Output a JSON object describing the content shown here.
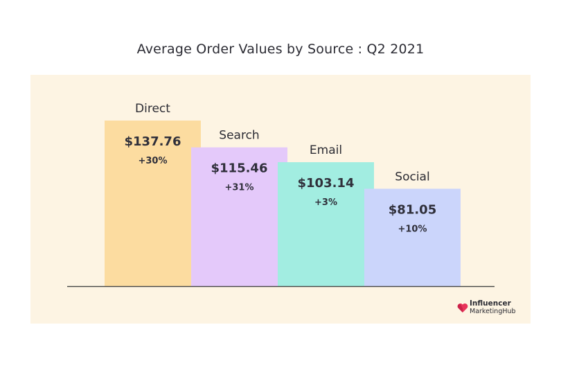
{
  "chart_data": {
    "type": "bar",
    "title": "Average Order Values by Source : Q2 2021",
    "categories": [
      "Direct",
      "Search",
      "Email",
      "Social"
    ],
    "values": [
      137.76,
      115.46,
      103.14,
      81.05
    ],
    "value_labels": [
      "$137.76",
      "$115.46",
      "$103.14",
      "$81.05"
    ],
    "change_labels": [
      "+30%",
      "+31%",
      "+3%",
      "+10%"
    ],
    "colors": [
      "#fcdca0",
      "#e4c9fa",
      "#a2ede1",
      "#cbd5fb"
    ],
    "xlabel": "",
    "ylabel": "",
    "ylim": [
      0,
      137.76
    ],
    "grid": false,
    "legend": "none"
  },
  "brand": {
    "line1": "Influencer",
    "line2": "MarketingHub",
    "color": "#e8345b"
  }
}
